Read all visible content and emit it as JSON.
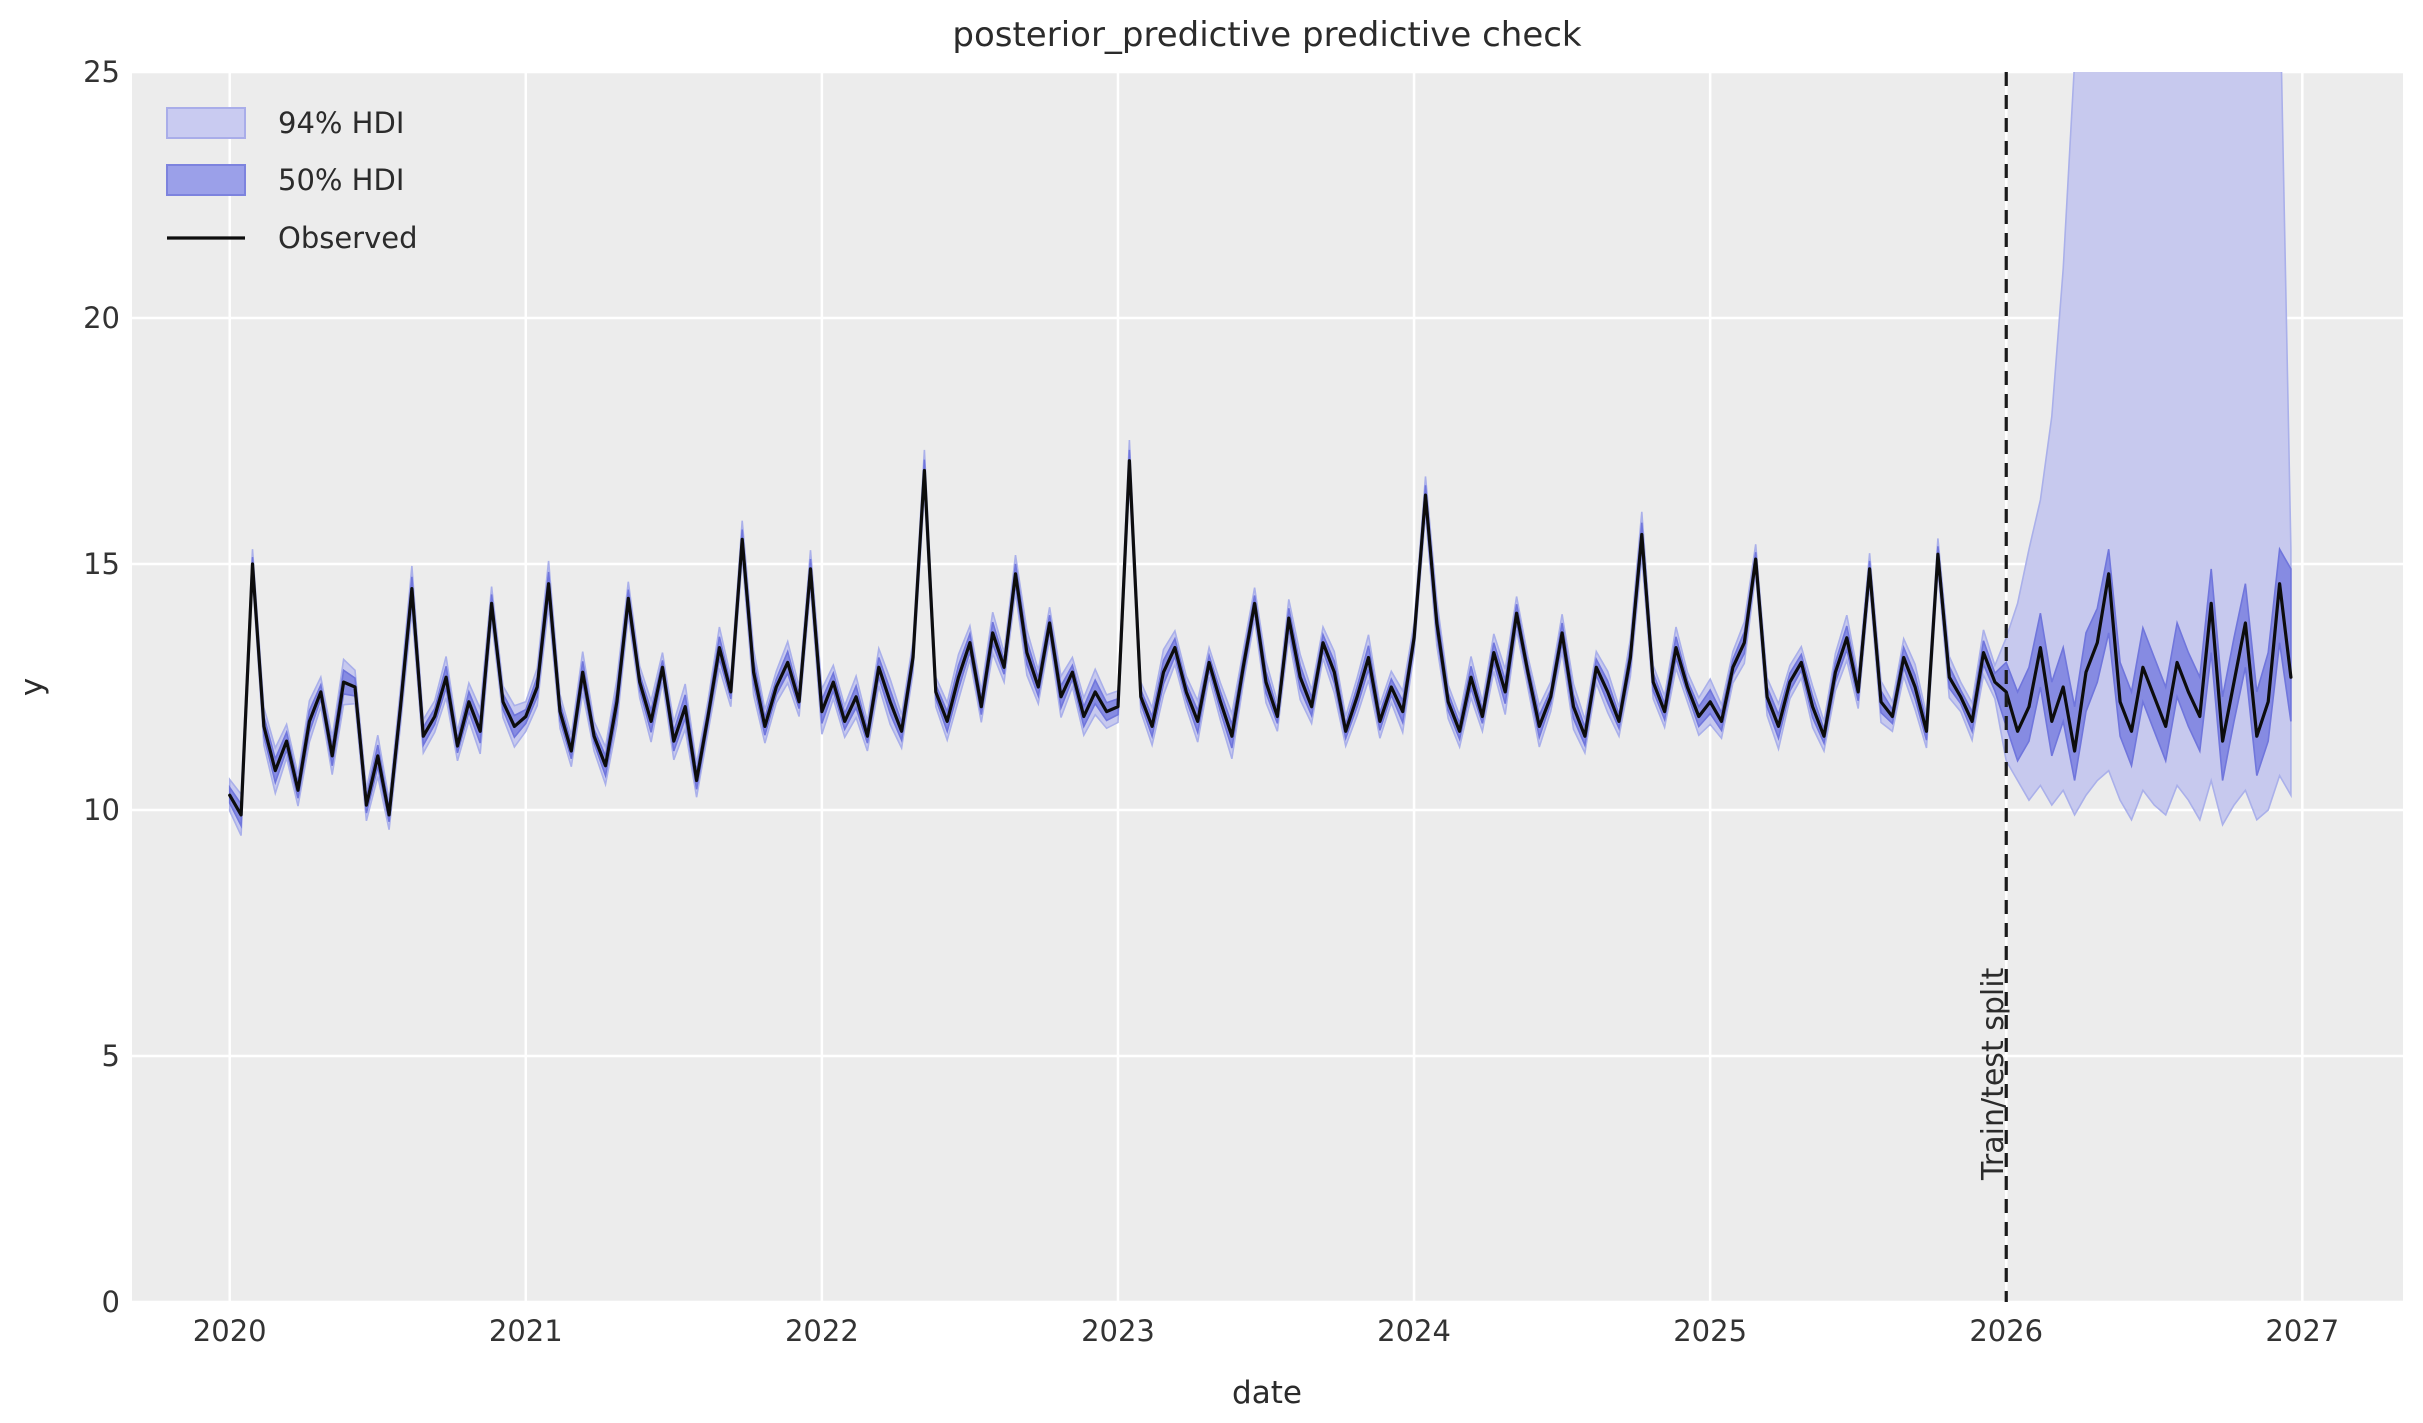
{
  "title": "posterior_predictive predictive check",
  "axes": {
    "xlabel": "date",
    "ylabel": "y",
    "x_ticks": [
      2020,
      2021,
      2022,
      2023,
      2024,
      2025,
      2026,
      2027
    ],
    "y_ticks": [
      0,
      5,
      10,
      15,
      20,
      25
    ],
    "x_range": [
      2019.67,
      2027.34
    ],
    "y_range": [
      0,
      25
    ]
  },
  "legend": {
    "items": [
      {
        "label": "94% HDI",
        "swatch": "band-light"
      },
      {
        "label": "50% HDI",
        "swatch": "band-dark"
      },
      {
        "label": "Observed",
        "swatch": "line"
      }
    ]
  },
  "annotations": {
    "split_label": "Train/test split",
    "split_x": 2026.0
  },
  "colors": {
    "background": "#ffffff",
    "axes_background": "#ececec",
    "grid": "#ffffff",
    "observed": "#0d0d0d",
    "hdi94_fill": "#c7c9ee",
    "hdi94_edge": "#aab0ea",
    "hdi50_fill": "#868be2",
    "hdi50_edge": "#7076dc",
    "split_line": "#1a1a1a",
    "text": "#2b2b2b"
  },
  "chart_data": {
    "type": "line",
    "title": "posterior_predictive predictive check",
    "xlabel": "date",
    "ylabel": "y",
    "ylim": [
      0,
      25
    ],
    "xlim": [
      2019.67,
      2027.34
    ],
    "grid": true,
    "legend_position": "upper-left",
    "train_test_split_x": 2026.0,
    "x_start": 2020.0,
    "x_step": 0.0384615,
    "series": [
      {
        "name": "Observed",
        "type": "line",
        "values": [
          10.3,
          9.9,
          15.0,
          11.7,
          10.8,
          11.4,
          10.4,
          11.8,
          12.4,
          11.1,
          12.6,
          12.5,
          10.1,
          11.1,
          9.9,
          12.1,
          14.5,
          11.5,
          11.9,
          12.7,
          11.3,
          12.2,
          11.6,
          14.2,
          12.2,
          11.7,
          11.9,
          12.5,
          14.6,
          12.0,
          11.2,
          12.8,
          11.5,
          10.9,
          12.2,
          14.3,
          12.6,
          11.8,
          12.9,
          11.4,
          12.1,
          10.6,
          11.9,
          13.3,
          12.4,
          15.5,
          12.8,
          11.7,
          12.5,
          13.0,
          12.2,
          14.9,
          12.0,
          12.6,
          11.8,
          12.3,
          11.5,
          12.9,
          12.2,
          11.6,
          13.1,
          16.9,
          12.4,
          11.8,
          12.7,
          13.4,
          12.1,
          13.6,
          12.9,
          14.8,
          13.2,
          12.5,
          13.8,
          12.3,
          12.8,
          11.9,
          12.4,
          12.0,
          12.1,
          17.1,
          12.3,
          11.7,
          12.8,
          13.3,
          12.4,
          11.8,
          13.0,
          12.2,
          11.5,
          12.9,
          14.2,
          12.6,
          11.9,
          13.9,
          12.7,
          12.1,
          13.4,
          12.8,
          11.6,
          12.3,
          13.1,
          11.8,
          12.5,
          12.0,
          13.5,
          16.4,
          13.8,
          12.2,
          11.6,
          12.7,
          11.9,
          13.2,
          12.4,
          14.0,
          12.8,
          11.7,
          12.3,
          13.6,
          12.1,
          11.5,
          12.9,
          12.4,
          11.8,
          13.1,
          15.6,
          12.6,
          12.0,
          13.3,
          12.5,
          11.9,
          12.2,
          11.8,
          12.9,
          13.4,
          15.1,
          12.3,
          11.7,
          12.6,
          13.0,
          12.1,
          11.5,
          12.8,
          13.5,
          12.4,
          14.9,
          12.2,
          11.9,
          13.1,
          12.5,
          11.6,
          15.2,
          12.7,
          12.3,
          11.8,
          13.2,
          12.6,
          12.4,
          11.6,
          12.1,
          13.3,
          11.8,
          12.5,
          11.2,
          12.8,
          13.4,
          14.8,
          12.2,
          11.6,
          12.9,
          12.3,
          11.7,
          13.0,
          12.4,
          11.9,
          14.2,
          11.4,
          12.6,
          13.8,
          11.5,
          12.2,
          14.6,
          12.7
        ]
      },
      {
        "name": "94% HDI",
        "type": "band",
        "train_halfwidth_pattern": [
          0.32,
          0.42,
          0.3,
          0.38,
          0.46,
          0.34
        ],
        "test": {
          "start_index": 156,
          "hi": [
            13.5,
            14.2,
            15.3,
            16.3,
            18.0,
            21.0,
            25.2,
            27,
            27,
            27,
            27,
            27,
            27,
            27,
            27,
            27,
            27,
            27,
            27,
            27,
            27,
            27,
            27,
            27,
            27,
            15.3
          ],
          "lo": [
            11.0,
            10.6,
            10.2,
            10.5,
            10.1,
            10.4,
            9.9,
            10.3,
            10.6,
            10.8,
            10.2,
            9.8,
            10.4,
            10.1,
            9.9,
            10.5,
            10.2,
            9.8,
            10.6,
            9.7,
            10.1,
            10.4,
            9.8,
            10.0,
            10.7,
            10.3
          ]
        }
      },
      {
        "name": "50% HDI",
        "type": "band",
        "train_halfwidth_pattern": [
          0.16,
          0.22,
          0.14,
          0.2,
          0.24,
          0.18
        ],
        "test": {
          "start_index": 156,
          "hi": [
            13.0,
            12.4,
            12.9,
            14.0,
            12.6,
            13.3,
            12.1,
            13.6,
            14.1,
            15.3,
            13.0,
            12.4,
            13.7,
            13.1,
            12.5,
            13.8,
            13.2,
            12.7,
            14.9,
            12.3,
            13.5,
            14.6,
            12.4,
            13.2,
            15.3,
            14.9
          ],
          "lo": [
            11.7,
            11.0,
            11.4,
            12.5,
            11.1,
            11.8,
            10.6,
            12.0,
            12.6,
            13.6,
            11.5,
            10.9,
            12.2,
            11.6,
            11.0,
            12.3,
            11.7,
            11.2,
            13.2,
            10.6,
            11.8,
            12.9,
            10.7,
            11.4,
            13.4,
            11.8
          ]
        }
      }
    ]
  }
}
